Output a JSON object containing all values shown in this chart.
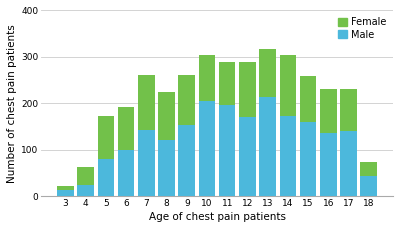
{
  "ages": [
    3,
    4,
    5,
    6,
    7,
    8,
    9,
    10,
    11,
    12,
    13,
    14,
    15,
    16,
    17,
    18
  ],
  "male": [
    13,
    25,
    80,
    100,
    143,
    120,
    153,
    205,
    197,
    170,
    213,
    173,
    160,
    137,
    140,
    43
  ],
  "female": [
    8,
    38,
    92,
    92,
    118,
    104,
    108,
    98,
    93,
    118,
    103,
    130,
    98,
    93,
    90,
    30
  ],
  "male_color": "#4cb8dc",
  "female_color": "#72c14a",
  "xlabel": "Age of chest pain patients",
  "ylabel": "Number of chest pain patients",
  "ylim": [
    0,
    400
  ],
  "yticks": [
    0,
    100,
    200,
    300,
    400
  ],
  "bar_width": 0.82,
  "legend_labels": [
    "Female",
    "Male"
  ],
  "legend_colors": [
    "#72c14a",
    "#4cb8dc"
  ],
  "grid_color": "#cccccc",
  "spine_color": "#aaaaaa"
}
